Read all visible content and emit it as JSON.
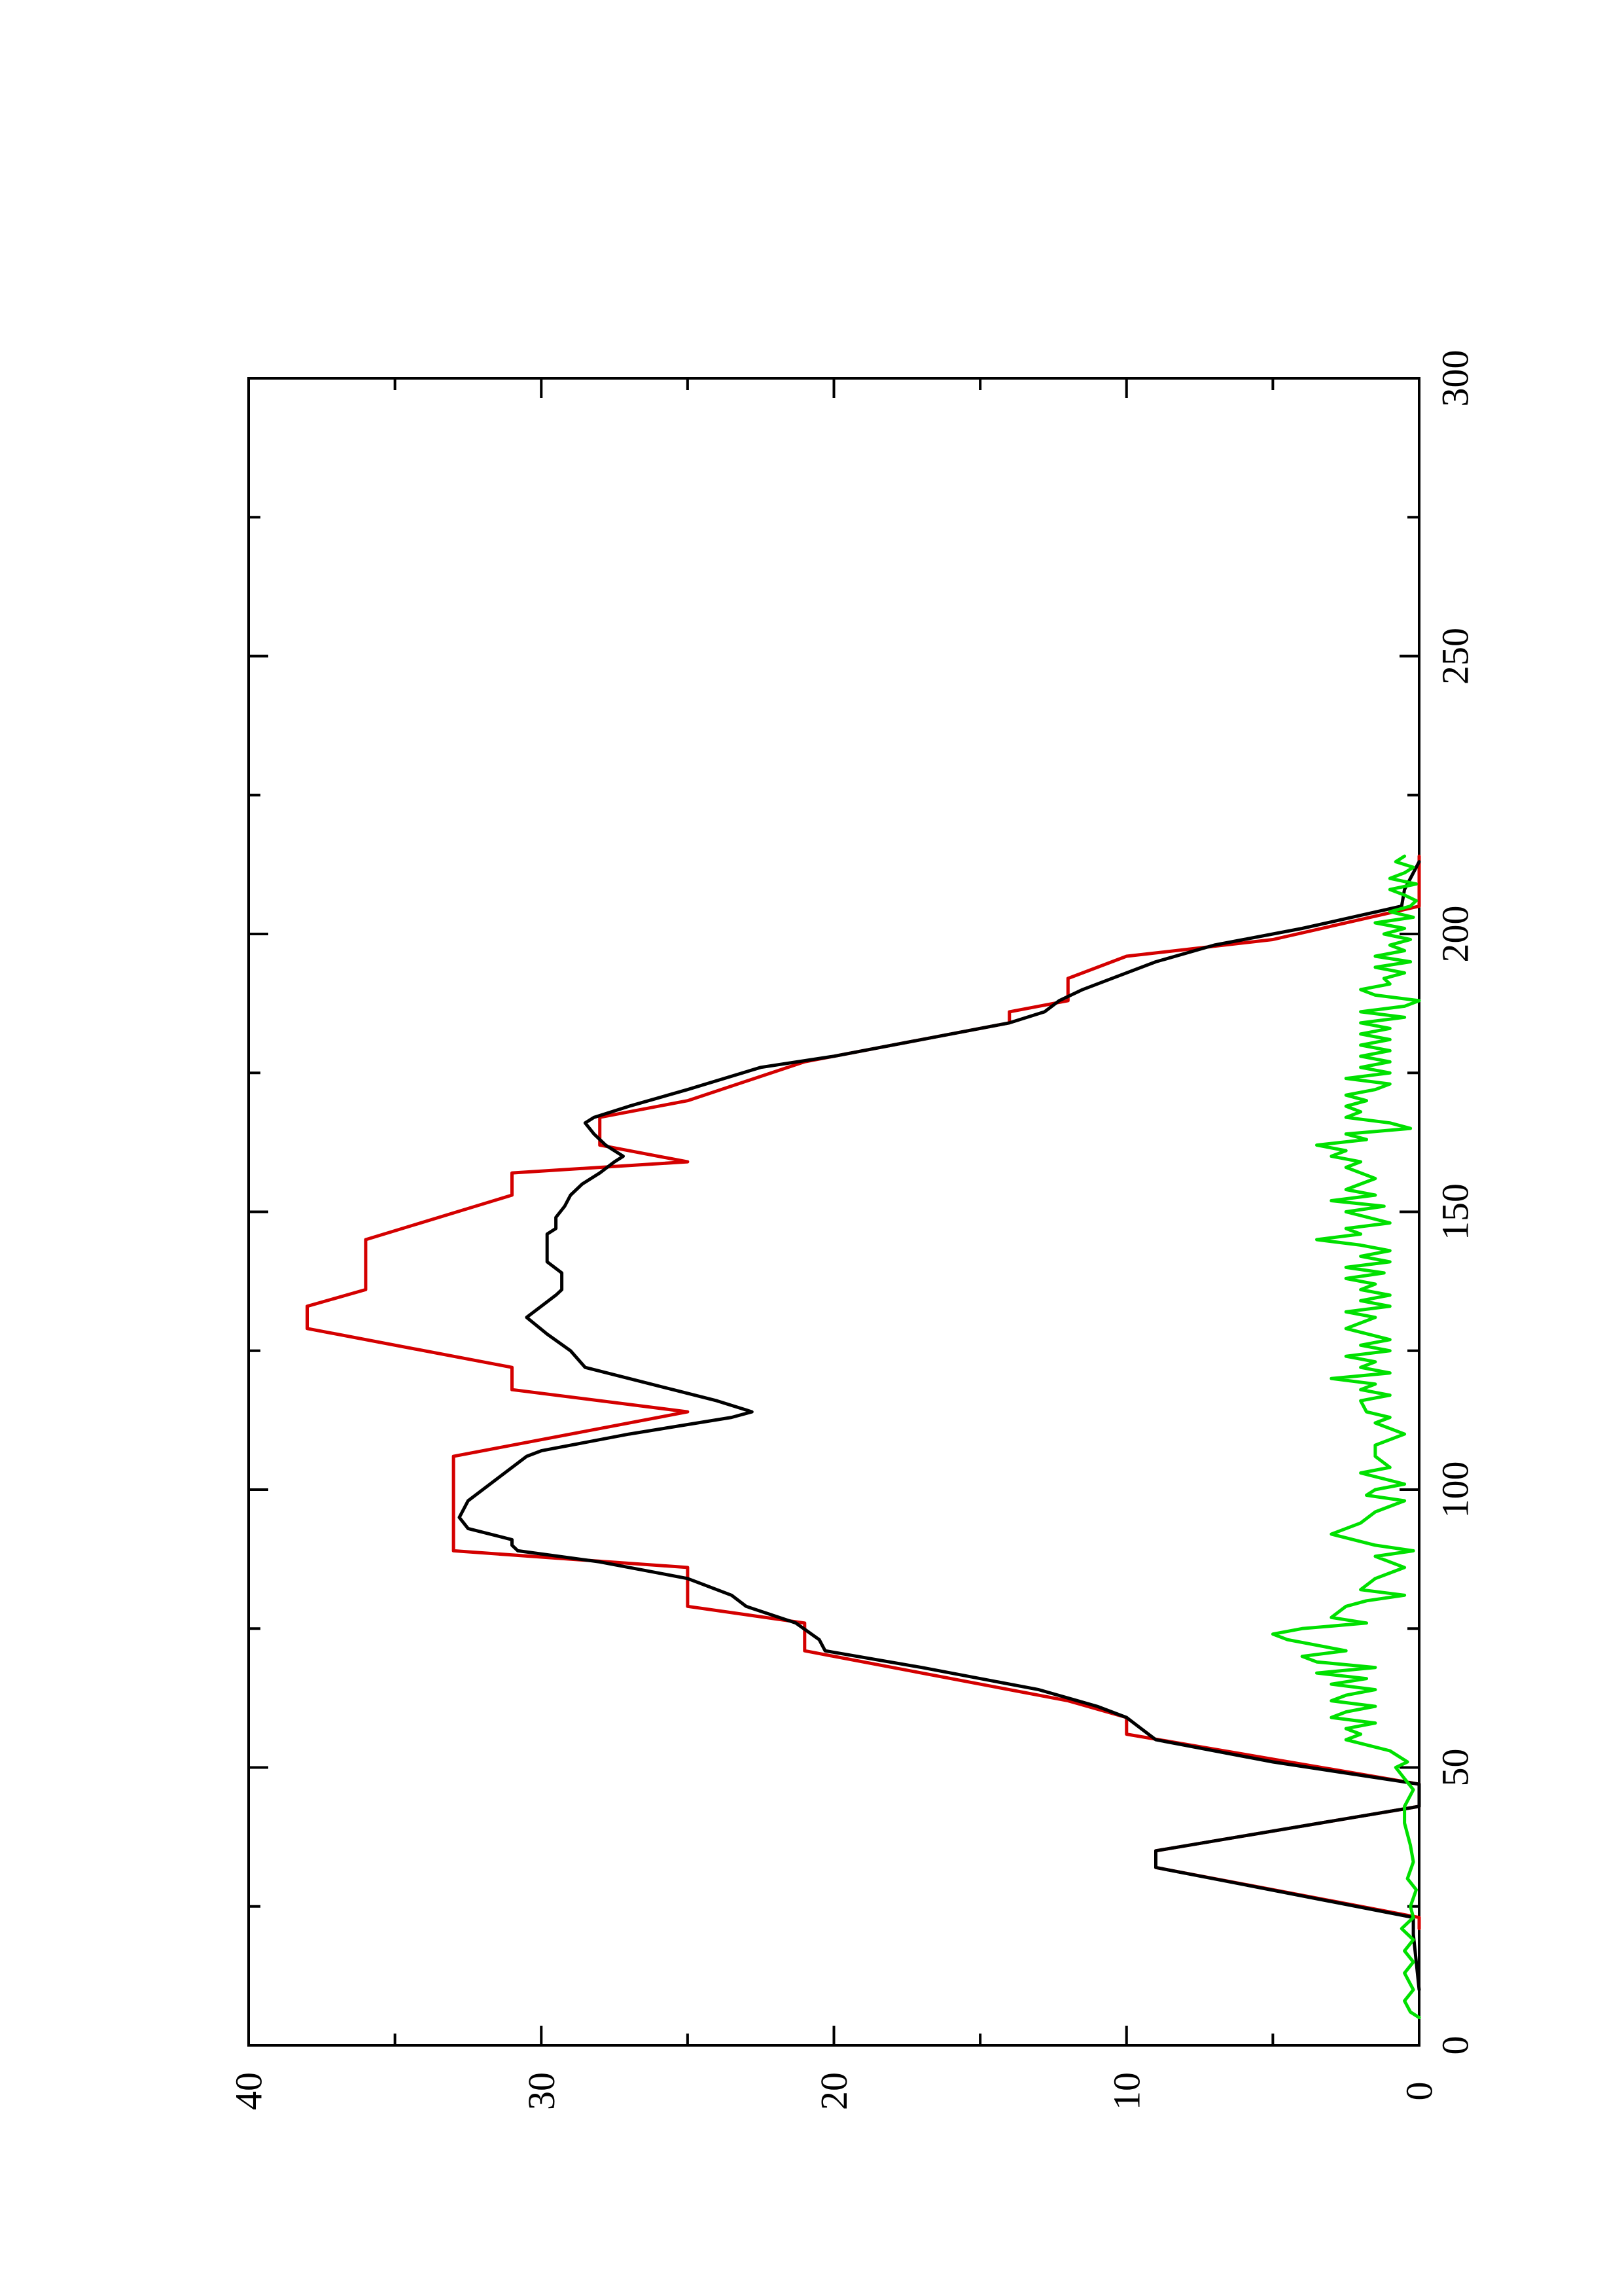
{
  "chart_data": {
    "type": "line",
    "orientation": "rotated 90 degrees counter-clockwise",
    "title": "",
    "xlabel": "",
    "ylabel": "",
    "xlim": [
      0,
      300
    ],
    "ylim": [
      0,
      40
    ],
    "x_ticks": [
      0,
      50,
      100,
      150,
      200,
      250,
      300
    ],
    "x_minor_ticks": [
      25,
      75,
      125,
      175,
      225,
      275
    ],
    "y_ticks": [
      0,
      10,
      20,
      30,
      40
    ],
    "y_minor_ticks": [
      5,
      15,
      25,
      35
    ],
    "x_tick_labels": [
      "0",
      "50",
      "100",
      "150",
      "200",
      "250",
      "300"
    ],
    "y_tick_labels": [
      "0",
      "10",
      "20",
      "30",
      "40"
    ],
    "grid": false,
    "legend": "none",
    "series": [
      {
        "color": "#d40000",
        "step": true,
        "points": [
          [
            21,
            0
          ],
          [
            23,
            0
          ],
          [
            32,
            9
          ],
          [
            35,
            9
          ],
          [
            43,
            0
          ],
          [
            47,
            0
          ],
          [
            56,
            10
          ],
          [
            59,
            10
          ],
          [
            62,
            12
          ],
          [
            71,
            21
          ],
          [
            76,
            21
          ],
          [
            79,
            25
          ],
          [
            86,
            25
          ],
          [
            89,
            33
          ],
          [
            106,
            33
          ],
          [
            114,
            25
          ],
          [
            118,
            31
          ],
          [
            122,
            31
          ],
          [
            129,
            38
          ],
          [
            133,
            38
          ],
          [
            136,
            36
          ],
          [
            145,
            36
          ],
          [
            153,
            31
          ],
          [
            157,
            31
          ],
          [
            159,
            25
          ],
          [
            162,
            28
          ],
          [
            167,
            28
          ],
          [
            170,
            25
          ],
          [
            177,
            21
          ],
          [
            184,
            14
          ],
          [
            186,
            14
          ],
          [
            188,
            12
          ],
          [
            192,
            12
          ],
          [
            196,
            10
          ],
          [
            199,
            5
          ],
          [
            205,
            0
          ],
          [
            214,
            0
          ]
        ]
      },
      {
        "color": "#000000",
        "step": false,
        "points": [
          [
            10,
            0
          ],
          [
            20,
            0.2
          ],
          [
            23,
            0.2
          ],
          [
            32,
            9
          ],
          [
            35,
            9
          ],
          [
            43,
            0
          ],
          [
            47,
            0
          ],
          [
            51,
            5
          ],
          [
            55,
            9
          ],
          [
            57,
            9.5
          ],
          [
            59,
            10
          ],
          [
            61,
            11
          ],
          [
            64,
            13
          ],
          [
            68,
            17
          ],
          [
            71,
            20.3
          ],
          [
            73,
            20.5
          ],
          [
            76,
            21.3
          ],
          [
            79,
            23
          ],
          [
            81,
            23.5
          ],
          [
            84,
            25
          ],
          [
            87,
            28
          ],
          [
            89,
            30.8
          ],
          [
            90,
            31
          ],
          [
            91,
            31
          ],
          [
            93,
            32.5
          ],
          [
            95,
            32.8
          ],
          [
            98,
            32.5
          ],
          [
            102,
            31.5
          ],
          [
            106,
            30.5
          ],
          [
            107,
            30
          ],
          [
            110,
            27
          ],
          [
            113,
            23.5
          ],
          [
            114,
            22.8
          ],
          [
            116,
            24
          ],
          [
            118,
            25.5
          ],
          [
            120,
            27
          ],
          [
            122,
            28.5
          ],
          [
            125,
            29
          ],
          [
            128,
            29.8
          ],
          [
            131,
            30.5
          ],
          [
            133,
            30
          ],
          [
            135,
            29.5
          ],
          [
            136,
            29.3
          ],
          [
            139,
            29.3
          ],
          [
            141,
            29.8
          ],
          [
            146,
            29.8
          ],
          [
            147,
            29.5
          ],
          [
            149,
            29.5
          ],
          [
            151,
            29.2
          ],
          [
            153,
            29
          ],
          [
            155,
            28.6
          ],
          [
            157,
            28
          ],
          [
            159,
            27.5
          ],
          [
            160,
            27.2
          ],
          [
            162,
            27.8
          ],
          [
            164,
            28.2
          ],
          [
            166,
            28.5
          ],
          [
            167,
            28.2
          ],
          [
            169,
            27
          ],
          [
            172,
            25
          ],
          [
            176,
            22.5
          ],
          [
            178,
            20
          ],
          [
            181,
            17
          ],
          [
            184,
            14
          ],
          [
            186,
            12.8
          ],
          [
            188,
            12.3
          ],
          [
            190,
            11.5
          ],
          [
            192,
            10.5
          ],
          [
            195,
            9
          ],
          [
            198,
            7
          ],
          [
            199,
            6
          ],
          [
            201,
            4
          ],
          [
            205,
            0.6
          ],
          [
            208,
            0.5
          ],
          [
            210,
            0.3
          ],
          [
            213,
            0
          ]
        ]
      },
      {
        "color": "#00e000",
        "step": false,
        "points": [
          [
            5,
            0
          ],
          [
            6,
            0.3
          ],
          [
            8,
            0.5
          ],
          [
            10,
            0.2
          ],
          [
            13,
            0.5
          ],
          [
            15,
            0.2
          ],
          [
            17,
            0.5
          ],
          [
            19,
            0.2
          ],
          [
            21,
            0.6
          ],
          [
            23,
            0.2
          ],
          [
            25,
            0.3
          ],
          [
            28,
            0.1
          ],
          [
            30,
            0.4
          ],
          [
            33,
            0.2
          ],
          [
            36,
            0.3
          ],
          [
            40,
            0.5
          ],
          [
            43,
            0.5
          ],
          [
            46,
            0.2
          ],
          [
            48,
            0.5
          ],
          [
            50,
            0.8
          ],
          [
            51,
            0.4
          ],
          [
            53,
            1.0
          ],
          [
            55,
            2.5
          ],
          [
            56,
            2.0
          ],
          [
            57,
            2.5
          ],
          [
            58,
            1.5
          ],
          [
            59,
            3.0
          ],
          [
            60,
            2.5
          ],
          [
            61,
            1.5
          ],
          [
            62,
            3.0
          ],
          [
            63,
            2.5
          ],
          [
            64,
            1.5
          ],
          [
            65,
            3.0
          ],
          [
            66,
            1.8
          ],
          [
            67,
            3.5
          ],
          [
            68,
            1.5
          ],
          [
            69,
            3.5
          ],
          [
            70,
            4.0
          ],
          [
            71,
            2.5
          ],
          [
            72,
            3.5
          ],
          [
            73,
            4.5
          ],
          [
            74,
            5.0
          ],
          [
            75,
            4.0
          ],
          [
            76,
            1.8
          ],
          [
            77,
            3.0
          ],
          [
            79,
            2.5
          ],
          [
            80,
            1.8
          ],
          [
            81,
            0.5
          ],
          [
            82,
            2.0
          ],
          [
            84,
            1.5
          ],
          [
            86,
            0.5
          ],
          [
            88,
            1.5
          ],
          [
            89,
            0.2
          ],
          [
            90,
            1.5
          ],
          [
            92,
            3.0
          ],
          [
            94,
            2.0
          ],
          [
            96,
            1.5
          ],
          [
            98,
            0.5
          ],
          [
            99,
            1.8
          ],
          [
            100,
            1.5
          ],
          [
            101,
            0.5
          ],
          [
            103,
            2.0
          ],
          [
            104,
            1.0
          ],
          [
            106,
            1.5
          ],
          [
            108,
            1.5
          ],
          [
            110,
            0.5
          ],
          [
            112,
            1.5
          ],
          [
            113,
            1.0
          ],
          [
            114,
            1.8
          ],
          [
            116,
            2.0
          ],
          [
            117,
            1.0
          ],
          [
            118,
            2.0
          ],
          [
            119,
            1.5
          ],
          [
            120,
            3.0
          ],
          [
            121,
            1.0
          ],
          [
            122,
            2.0
          ],
          [
            123,
            1.5
          ],
          [
            124,
            2.5
          ],
          [
            125,
            1.0
          ],
          [
            126,
            2.0
          ],
          [
            127,
            1.0
          ],
          [
            129,
            2.5
          ],
          [
            131,
            1.5
          ],
          [
            132,
            2.5
          ],
          [
            133,
            1.0
          ],
          [
            134,
            2.0
          ],
          [
            135,
            1.0
          ],
          [
            136,
            2.0
          ],
          [
            137,
            1.5
          ],
          [
            138,
            2.5
          ],
          [
            139,
            1.2
          ],
          [
            140,
            2.5
          ],
          [
            141,
            1.0
          ],
          [
            142,
            2.0
          ],
          [
            143,
            1.0
          ],
          [
            144,
            2.0
          ],
          [
            145,
            3.5
          ],
          [
            146,
            2.0
          ],
          [
            147,
            2.5
          ],
          [
            148,
            1.0
          ],
          [
            150,
            2.5
          ],
          [
            151,
            1.2
          ],
          [
            152,
            3.0
          ],
          [
            153,
            1.5
          ],
          [
            154,
            2.5
          ],
          [
            155,
            2.0
          ],
          [
            156,
            1.5
          ],
          [
            158,
            2.5
          ],
          [
            159,
            2.0
          ],
          [
            160,
            3.0
          ],
          [
            161,
            2.5
          ],
          [
            162,
            3.5
          ],
          [
            163,
            1.8
          ],
          [
            164,
            2.5
          ],
          [
            165,
            0.3
          ],
          [
            166,
            1.0
          ],
          [
            167,
            2.5
          ],
          [
            168,
            2.0
          ],
          [
            169,
            2.5
          ],
          [
            170,
            1.8
          ],
          [
            171,
            2.5
          ],
          [
            172,
            1.5
          ],
          [
            173,
            1.0
          ],
          [
            174,
            2.5
          ],
          [
            175,
            1.0
          ],
          [
            176,
            2.0
          ],
          [
            177,
            1.0
          ],
          [
            178,
            2.0
          ],
          [
            179,
            1.0
          ],
          [
            180,
            2.0
          ],
          [
            181,
            1.0
          ],
          [
            182,
            2.0
          ],
          [
            183,
            1.0
          ],
          [
            184,
            2.0
          ],
          [
            185,
            0.5
          ],
          [
            186,
            2.0
          ],
          [
            187,
            0.5
          ],
          [
            188,
            0
          ],
          [
            189,
            1.5
          ],
          [
            190,
            2.0
          ],
          [
            191,
            1.0
          ],
          [
            192,
            1.2
          ],
          [
            193,
            0.5
          ],
          [
            194,
            1.5
          ],
          [
            195,
            0.3
          ],
          [
            196,
            1.5
          ],
          [
            197,
            0.5
          ],
          [
            198,
            1.0
          ],
          [
            199,
            0.3
          ],
          [
            200,
            1.2
          ],
          [
            201,
            0.5
          ],
          [
            202,
            1.5
          ],
          [
            203,
            0.2
          ],
          [
            204,
            1.0
          ],
          [
            205,
            0.3
          ],
          [
            206,
            0.1
          ],
          [
            207,
            0.5
          ],
          [
            208,
            1.0
          ],
          [
            209,
            0.1
          ],
          [
            210,
            1.0
          ],
          [
            211,
            0.5
          ],
          [
            212,
            0.2
          ],
          [
            213,
            0.8
          ],
          [
            214,
            0.5
          ]
        ]
      }
    ]
  },
  "colors": {
    "background": "#ffffff",
    "axes": "#000000"
  }
}
